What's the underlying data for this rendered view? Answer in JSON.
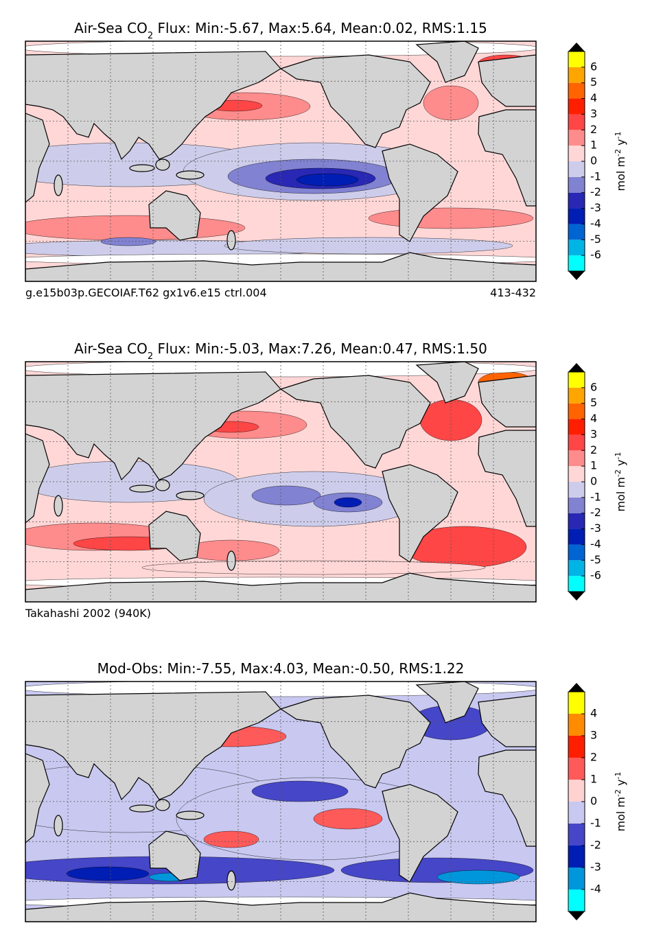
{
  "panels": [
    {
      "title": {
        "text": "Air-Sea CO",
        "subscript": "2",
        "rest": " Flux: Min:-5.67, Max:5.64, Mean:0.02, RMS:1.15"
      },
      "footer_left": "g.e15b03p.GECOIAF.T62 gx1v6.e15 ctrl.004",
      "footer_right": "413-432",
      "colorbar": {
        "lim": [
          -7,
          7
        ],
        "ticks": [
          6,
          5,
          4,
          3,
          2,
          1,
          0,
          -1,
          -2,
          -3,
          -4,
          -5,
          -6
        ],
        "colors": [
          "#00ffff",
          "#00b4e6",
          "#0064d2",
          "#001eb4",
          "#2828b4",
          "#8282d2",
          "#cdcdeb",
          "#ffd7d7",
          "#ff8c8c",
          "#ff4646",
          "#ff1e00",
          "#ff6400",
          "#ffa500",
          "#ffff00"
        ],
        "label": {
          "text": "mol m",
          "exp1": "-2",
          "mid": " y",
          "exp2": "-1"
        }
      }
    },
    {
      "title": {
        "text": "Air-Sea CO",
        "subscript": "2",
        "rest": " Flux: Min:-5.03, Max:7.26, Mean:0.47, RMS:1.50"
      },
      "footer_left": "Takahashi 2002 (940K)",
      "colorbar": {
        "lim": [
          -7,
          7
        ],
        "ticks": [
          6,
          5,
          4,
          3,
          2,
          1,
          0,
          -1,
          -2,
          -3,
          -4,
          -5,
          -6
        ],
        "colors": [
          "#00ffff",
          "#00b4e6",
          "#0064d2",
          "#001eb4",
          "#2828b4",
          "#8282d2",
          "#cdcdeb",
          "#ffd7d7",
          "#ff8c8c",
          "#ff4646",
          "#ff1e00",
          "#ff6400",
          "#ffa500",
          "#ffff00"
        ],
        "label": {
          "text": "mol m",
          "exp1": "-2",
          "mid": " y",
          "exp2": "-1"
        }
      }
    },
    {
      "title": {
        "text": "Mod-Obs: Min:-7.55, Max:4.03, Mean:-0.50, RMS:1.22"
      },
      "colorbar": {
        "lim": [
          -5,
          5
        ],
        "ticks": [
          4,
          3,
          2,
          1,
          0,
          -1,
          -2,
          -3,
          -4
        ],
        "colors": [
          "#00ffff",
          "#0096dc",
          "#001eb4",
          "#4646c8",
          "#c8c8f0",
          "#ffd2d2",
          "#ff5a5a",
          "#ff1e00",
          "#ff8c00",
          "#ffff00"
        ],
        "label": {
          "text": "mol m",
          "exp1": "-2",
          "mid": " y",
          "exp2": "-1"
        }
      }
    }
  ]
}
